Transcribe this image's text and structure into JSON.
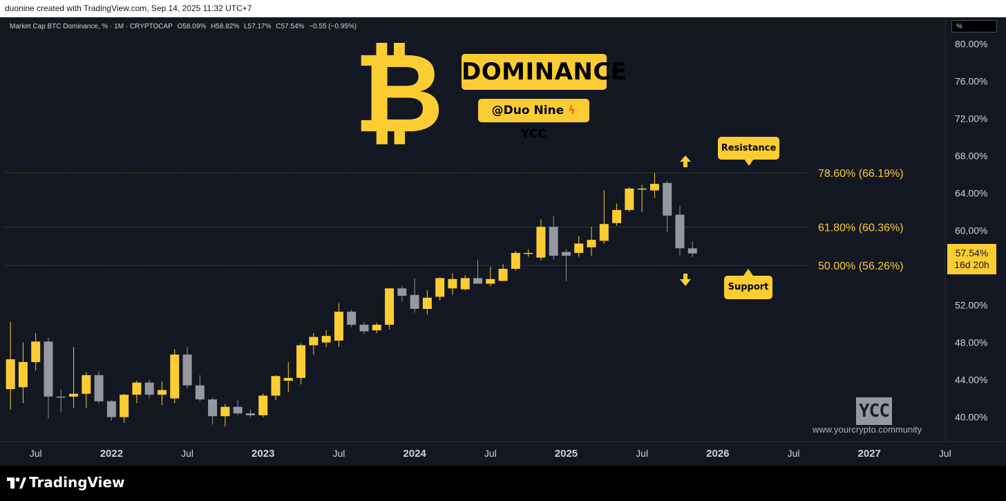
{
  "header": {
    "credit": "duonine created with TradingView.com, Sep 14, 2025 11:32 UTC+7"
  },
  "legend": {
    "symbol": "Market Cap BTC Dominance, % · 1M · CRYPTOCAP",
    "open": "O58.09%",
    "high": "H58.82%",
    "low": "L57.17%",
    "close": "C57.54%",
    "change": "−0.55 (−0.95%)"
  },
  "unit_selector": "%",
  "overlay": {
    "title": "DOMINANCE",
    "subtitle_left": "@Duo Nine",
    "subtitle_right": "YCC",
    "resistance_label": "Resistance",
    "support_label": "Support",
    "ycc_mark": "YCC",
    "website": "www.yourcrypto.community"
  },
  "price_tag": {
    "value": "57.54%",
    "countdown": "16d 20h"
  },
  "footer": {
    "brand": "TradingView"
  },
  "colors": {
    "background": "#131722",
    "bullish": "#fbcd32",
    "bearish": "#9598a1",
    "accent": "#fbcd32",
    "axis_text": "#d1d4dc"
  },
  "chart_data": {
    "type": "candlestick",
    "title": "Market Cap BTC Dominance, % · 1M · CRYPTOCAP",
    "y_axis": {
      "ticks": [
        "80.00%",
        "76.00%",
        "72.00%",
        "68.00%",
        "64.00%",
        "60.00%",
        "56.00%",
        "52.00%",
        "48.00%",
        "44.00%",
        "40.00%"
      ],
      "tick_values": [
        80,
        76,
        72,
        68,
        64,
        60,
        56,
        52,
        48,
        44,
        40
      ],
      "range": [
        38.3,
        81.8
      ],
      "position": "right"
    },
    "x_axis": {
      "labels": [
        {
          "label": "Jul",
          "date": "2021-07"
        },
        {
          "label": "2022",
          "date": "2022-01"
        },
        {
          "label": "Jul",
          "date": "2022-07"
        },
        {
          "label": "2023",
          "date": "2023-01"
        },
        {
          "label": "Jul",
          "date": "2023-07"
        },
        {
          "label": "2024",
          "date": "2024-01"
        },
        {
          "label": "Jul",
          "date": "2024-07"
        },
        {
          "label": "2025",
          "date": "2025-01"
        },
        {
          "label": "Jul",
          "date": "2025-07"
        },
        {
          "label": "2026",
          "date": "2026-01"
        },
        {
          "label": "Jul",
          "date": "2026-07"
        },
        {
          "label": "2027",
          "date": "2027-01"
        },
        {
          "label": "Jul",
          "date": "2027-07"
        }
      ]
    },
    "fib_levels": [
      {
        "label": "78.60% (66.19%)",
        "value": 66.19
      },
      {
        "label": "61.80% (60.36%)",
        "value": 60.36
      },
      {
        "label": "50.00% (56.26%)",
        "value": 56.26
      }
    ],
    "candles": [
      {
        "date": "2021-05",
        "o": 43.0,
        "h": 50.2,
        "l": 40.8,
        "c": 46.2
      },
      {
        "date": "2021-06",
        "o": 43.2,
        "h": 48.0,
        "l": 41.5,
        "c": 45.9
      },
      {
        "date": "2021-07",
        "o": 45.9,
        "h": 49.0,
        "l": 45.0,
        "c": 48.1
      },
      {
        "date": "2021-08",
        "o": 48.1,
        "h": 48.5,
        "l": 39.9,
        "c": 42.2
      },
      {
        "date": "2021-09",
        "o": 42.2,
        "h": 43.0,
        "l": 40.5,
        "c": 42.1
      },
      {
        "date": "2021-10",
        "o": 42.2,
        "h": 47.5,
        "l": 41.0,
        "c": 42.5
      },
      {
        "date": "2021-11",
        "o": 42.5,
        "h": 44.8,
        "l": 41.0,
        "c": 44.5
      },
      {
        "date": "2021-12",
        "o": 44.5,
        "h": 44.9,
        "l": 41.5,
        "c": 41.7
      },
      {
        "date": "2022-01",
        "o": 41.7,
        "h": 41.8,
        "l": 39.6,
        "c": 40.0
      },
      {
        "date": "2022-02",
        "o": 40.0,
        "h": 42.5,
        "l": 39.4,
        "c": 42.4
      },
      {
        "date": "2022-03",
        "o": 42.4,
        "h": 43.9,
        "l": 41.5,
        "c": 43.7
      },
      {
        "date": "2022-04",
        "o": 43.7,
        "h": 44.0,
        "l": 42.0,
        "c": 42.4
      },
      {
        "date": "2022-05",
        "o": 42.4,
        "h": 43.8,
        "l": 41.3,
        "c": 42.9
      },
      {
        "date": "2022-06",
        "o": 42.0,
        "h": 47.3,
        "l": 41.5,
        "c": 46.7
      },
      {
        "date": "2022-07",
        "o": 46.7,
        "h": 47.5,
        "l": 43.1,
        "c": 43.4
      },
      {
        "date": "2022-08",
        "o": 43.4,
        "h": 44.5,
        "l": 41.7,
        "c": 41.9
      },
      {
        "date": "2022-09",
        "o": 41.9,
        "h": 42.1,
        "l": 39.2,
        "c": 40.1
      },
      {
        "date": "2022-10",
        "o": 40.1,
        "h": 41.4,
        "l": 39.0,
        "c": 41.1
      },
      {
        "date": "2022-11",
        "o": 41.1,
        "h": 41.8,
        "l": 40.2,
        "c": 40.4
      },
      {
        "date": "2022-12",
        "o": 40.4,
        "h": 40.8,
        "l": 40.0,
        "c": 40.2
      },
      {
        "date": "2023-01",
        "o": 40.2,
        "h": 42.5,
        "l": 40.0,
        "c": 42.3
      },
      {
        "date": "2023-02",
        "o": 42.3,
        "h": 44.5,
        "l": 41.8,
        "c": 44.4
      },
      {
        "date": "2023-03",
        "o": 43.9,
        "h": 45.9,
        "l": 42.7,
        "c": 44.2
      },
      {
        "date": "2023-04",
        "o": 44.2,
        "h": 47.9,
        "l": 43.5,
        "c": 47.7
      },
      {
        "date": "2023-05",
        "o": 47.7,
        "h": 49.0,
        "l": 46.7,
        "c": 48.6
      },
      {
        "date": "2023-06",
        "o": 48.0,
        "h": 49.3,
        "l": 47.5,
        "c": 48.7
      },
      {
        "date": "2023-07",
        "o": 48.2,
        "h": 52.2,
        "l": 47.5,
        "c": 51.3
      },
      {
        "date": "2023-08",
        "o": 51.3,
        "h": 51.5,
        "l": 49.6,
        "c": 49.9
      },
      {
        "date": "2023-09",
        "o": 49.9,
        "h": 50.2,
        "l": 48.9,
        "c": 49.2
      },
      {
        "date": "2023-10",
        "o": 49.3,
        "h": 50.1,
        "l": 49.0,
        "c": 49.9
      },
      {
        "date": "2023-11",
        "o": 49.9,
        "h": 53.8,
        "l": 49.4,
        "c": 53.8
      },
      {
        "date": "2023-12",
        "o": 53.8,
        "h": 54.1,
        "l": 52.4,
        "c": 53.0
      },
      {
        "date": "2024-01",
        "o": 53.1,
        "h": 54.9,
        "l": 51.2,
        "c": 51.6
      },
      {
        "date": "2024-02",
        "o": 51.6,
        "h": 53.6,
        "l": 51.0,
        "c": 52.8
      },
      {
        "date": "2024-03",
        "o": 52.9,
        "h": 55.0,
        "l": 52.5,
        "c": 54.9
      },
      {
        "date": "2024-04",
        "o": 53.8,
        "h": 55.4,
        "l": 53.1,
        "c": 54.8
      },
      {
        "date": "2024-05",
        "o": 53.7,
        "h": 55.2,
        "l": 53.6,
        "c": 54.9
      },
      {
        "date": "2024-06",
        "o": 54.9,
        "h": 56.9,
        "l": 54.3,
        "c": 54.3
      },
      {
        "date": "2024-07",
        "o": 54.3,
        "h": 56.1,
        "l": 54.0,
        "c": 54.8
      },
      {
        "date": "2024-08",
        "o": 54.6,
        "h": 56.4,
        "l": 54.6,
        "c": 55.9
      },
      {
        "date": "2024-09",
        "o": 55.9,
        "h": 57.8,
        "l": 55.7,
        "c": 57.6
      },
      {
        "date": "2024-10",
        "o": 57.6,
        "h": 58.0,
        "l": 57.2,
        "c": 57.6
      },
      {
        "date": "2024-11",
        "o": 57.1,
        "h": 61.2,
        "l": 56.8,
        "c": 60.4
      },
      {
        "date": "2024-12",
        "o": 60.4,
        "h": 61.6,
        "l": 56.9,
        "c": 57.3
      },
      {
        "date": "2025-01",
        "o": 57.7,
        "h": 58.0,
        "l": 54.6,
        "c": 57.3
      },
      {
        "date": "2025-02",
        "o": 57.6,
        "h": 59.4,
        "l": 57.2,
        "c": 58.6
      },
      {
        "date": "2025-03",
        "o": 58.2,
        "h": 60.4,
        "l": 57.3,
        "c": 59.0
      },
      {
        "date": "2025-04",
        "o": 58.9,
        "h": 64.3,
        "l": 58.6,
        "c": 60.7
      },
      {
        "date": "2025-05",
        "o": 60.8,
        "h": 62.9,
        "l": 60.5,
        "c": 62.2
      },
      {
        "date": "2025-06",
        "o": 62.2,
        "h": 64.7,
        "l": 62.0,
        "c": 64.5
      },
      {
        "date": "2025-07",
        "o": 64.4,
        "h": 64.9,
        "l": 62.0,
        "c": 64.5
      },
      {
        "date": "2025-08",
        "o": 64.3,
        "h": 66.2,
        "l": 63.5,
        "c": 65.0
      },
      {
        "date": "2025-09",
        "o": 65.1,
        "h": 65.3,
        "l": 59.8,
        "c": 61.6
      },
      {
        "date": "2025-10",
        "o": 61.7,
        "h": 62.6,
        "l": 57.3,
        "c": 58.1
      },
      {
        "date": "2025-11",
        "o": 58.09,
        "h": 58.82,
        "l": 57.17,
        "c": 57.54
      }
    ]
  }
}
